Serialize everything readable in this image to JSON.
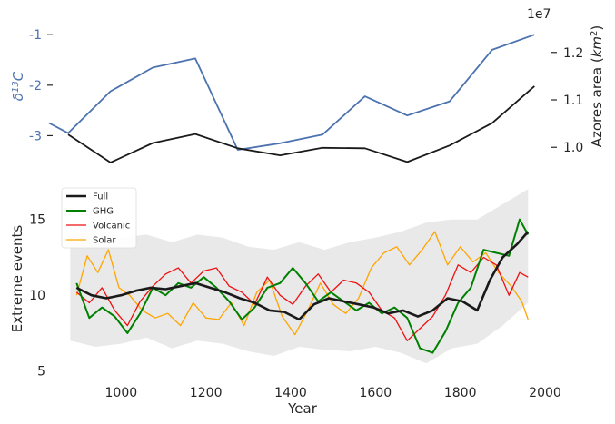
{
  "chart_data": [
    {
      "type": "line",
      "ylabel": "δ13C",
      "ylabel_base": "δ",
      "ylabel_sup": "13",
      "ylabel_tail": "C",
      "y2label": "Azores area (km²)",
      "y2label_main": "Azores area (",
      "y2label_unit": "km",
      "y2label_sup": "2",
      "y2label_end": ")",
      "y2_offset_text": "1e7",
      "ylim": [
        -3.55,
        -0.6
      ],
      "y2lim": [
        9660000,
        12800000
      ],
      "yticks": [
        {
          "v": -1,
          "label": "-1"
        },
        {
          "v": -2,
          "label": "-2"
        },
        {
          "v": -3,
          "label": "-3"
        }
      ],
      "y2ticks": [
        {
          "v": 10000000,
          "label": "1.0"
        },
        {
          "v": 11000000,
          "label": "1.1"
        },
        {
          "v": 12000000,
          "label": "1.2"
        }
      ],
      "left_axis_color": "#4c72b0",
      "series": [
        {
          "axis": "left",
          "color": "#4c72b0",
          "x": [
            830,
            875,
            975,
            1075,
            1175,
            1275,
            1375,
            1475,
            1575,
            1675,
            1775,
            1875,
            1975
          ],
          "y": [
            -2.75,
            -2.95,
            -2.12,
            -1.65,
            -1.47,
            -3.28,
            -3.15,
            -2.98,
            -2.22,
            -2.6,
            -2.32,
            -1.3,
            -1.0
          ]
        },
        {
          "axis": "right",
          "color": "#1a1a1a",
          "x": [
            875,
            975,
            1075,
            1175,
            1275,
            1375,
            1475,
            1575,
            1675,
            1775,
            1875,
            1975
          ],
          "y": [
            10270000,
            9680000,
            10090000,
            10280000,
            9980000,
            9830000,
            9990000,
            9980000,
            9690000,
            10040000,
            10510000,
            11290000
          ]
        }
      ]
    },
    {
      "type": "line",
      "xlabel": "Year",
      "ylabel": "Extreme events",
      "xlim": [
        830,
        2000
      ],
      "ylim": [
        4.8,
        17.5
      ],
      "xticks": [
        1000,
        1200,
        1400,
        1600,
        1800,
        2000
      ],
      "xtick_labels": [
        "1000",
        "1200",
        "1400",
        "1600",
        "1800",
        "2000"
      ],
      "yticks": [
        5,
        10,
        15
      ],
      "ytick_labels": [
        "5",
        "10",
        "15"
      ],
      "legend_position": "top-left",
      "band": {
        "color": "#e9e9e9",
        "x": [
          880,
          940,
          1000,
          1060,
          1120,
          1180,
          1240,
          1300,
          1360,
          1420,
          1480,
          1540,
          1600,
          1660,
          1720,
          1780,
          1840,
          1900,
          1960
        ],
        "upper": [
          14.0,
          14.8,
          13.8,
          14.0,
          13.5,
          14.0,
          13.8,
          13.2,
          13.0,
          13.5,
          13.0,
          13.5,
          13.8,
          14.2,
          14.8,
          15.0,
          15.0,
          16.0,
          17.0
        ],
        "lower": [
          7.0,
          6.6,
          6.8,
          7.2,
          6.5,
          7.0,
          6.8,
          6.3,
          6.0,
          6.6,
          6.4,
          6.3,
          6.6,
          6.2,
          5.5,
          6.5,
          6.8,
          8.0,
          9.5
        ]
      },
      "series": [
        {
          "name": "Full",
          "color": "#1a1a1a",
          "width": 2.6,
          "x": [
            895,
            930,
            965,
            1000,
            1035,
            1070,
            1105,
            1140,
            1175,
            1210,
            1245,
            1280,
            1315,
            1350,
            1385,
            1420,
            1455,
            1490,
            1525,
            1560,
            1595,
            1630,
            1665,
            1700,
            1735,
            1770,
            1805,
            1840,
            1870,
            1900,
            1935,
            1960
          ],
          "y": [
            10.5,
            10.0,
            9.8,
            10.0,
            10.3,
            10.5,
            10.4,
            10.6,
            10.8,
            10.5,
            10.2,
            9.8,
            9.5,
            9.0,
            8.9,
            8.4,
            9.4,
            9.8,
            9.6,
            9.4,
            9.2,
            8.8,
            9.0,
            8.6,
            9.0,
            9.8,
            9.6,
            9.0,
            11.0,
            12.5,
            13.4,
            14.2
          ]
        },
        {
          "name": "GHG",
          "color": "#008000",
          "width": 2.0,
          "x": [
            895,
            925,
            955,
            985,
            1015,
            1045,
            1075,
            1105,
            1135,
            1165,
            1195,
            1225,
            1255,
            1285,
            1315,
            1345,
            1375,
            1405,
            1435,
            1465,
            1495,
            1525,
            1555,
            1585,
            1615,
            1645,
            1675,
            1705,
            1735,
            1765,
            1795,
            1825,
            1855,
            1885,
            1915,
            1940,
            1960
          ],
          "y": [
            10.8,
            8.5,
            9.2,
            8.6,
            7.5,
            8.8,
            10.5,
            10.0,
            10.8,
            10.5,
            11.2,
            10.5,
            9.6,
            8.4,
            9.2,
            10.5,
            10.8,
            11.8,
            10.8,
            9.6,
            10.2,
            9.6,
            9.0,
            9.5,
            8.8,
            9.2,
            8.5,
            6.5,
            6.2,
            7.6,
            9.5,
            10.5,
            13.0,
            12.8,
            12.6,
            15.0,
            14.0
          ]
        },
        {
          "name": "Volcanic",
          "color": "#ee1111",
          "width": 1.3,
          "x": [
            895,
            925,
            955,
            985,
            1015,
            1045,
            1075,
            1105,
            1135,
            1165,
            1195,
            1225,
            1255,
            1285,
            1315,
            1345,
            1375,
            1405,
            1435,
            1465,
            1495,
            1525,
            1555,
            1585,
            1615,
            1645,
            1675,
            1705,
            1735,
            1765,
            1795,
            1825,
            1855,
            1885,
            1915,
            1940,
            1960
          ],
          "y": [
            10.2,
            9.5,
            10.5,
            9.0,
            8.0,
            9.6,
            10.6,
            11.4,
            11.8,
            10.8,
            11.6,
            11.8,
            10.6,
            10.2,
            9.4,
            11.2,
            10.0,
            9.4,
            10.6,
            11.4,
            10.2,
            11.0,
            10.8,
            10.2,
            9.0,
            8.5,
            7.0,
            7.8,
            8.6,
            10.0,
            12.0,
            11.5,
            12.5,
            12.0,
            10.0,
            11.5,
            11.2
          ]
        },
        {
          "name": "Solar",
          "color": "#ffa500",
          "width": 1.3,
          "x": [
            895,
            920,
            945,
            970,
            995,
            1020,
            1050,
            1080,
            1110,
            1140,
            1170,
            1200,
            1230,
            1260,
            1290,
            1320,
            1350,
            1380,
            1410,
            1440,
            1470,
            1500,
            1530,
            1560,
            1590,
            1620,
            1650,
            1680,
            1710,
            1740,
            1770,
            1800,
            1830,
            1860,
            1890,
            1920,
            1945,
            1960
          ],
          "y": [
            10.0,
            12.6,
            11.5,
            13.0,
            10.5,
            10.0,
            9.0,
            8.5,
            8.8,
            8.0,
            9.5,
            8.5,
            8.4,
            9.5,
            8.0,
            10.2,
            11.0,
            8.6,
            7.4,
            9.0,
            10.8,
            9.4,
            8.8,
            9.8,
            11.8,
            12.8,
            13.2,
            12.0,
            13.0,
            14.2,
            12.0,
            13.2,
            12.2,
            12.8,
            11.5,
            10.6,
            9.6,
            8.4
          ]
        }
      ]
    }
  ]
}
